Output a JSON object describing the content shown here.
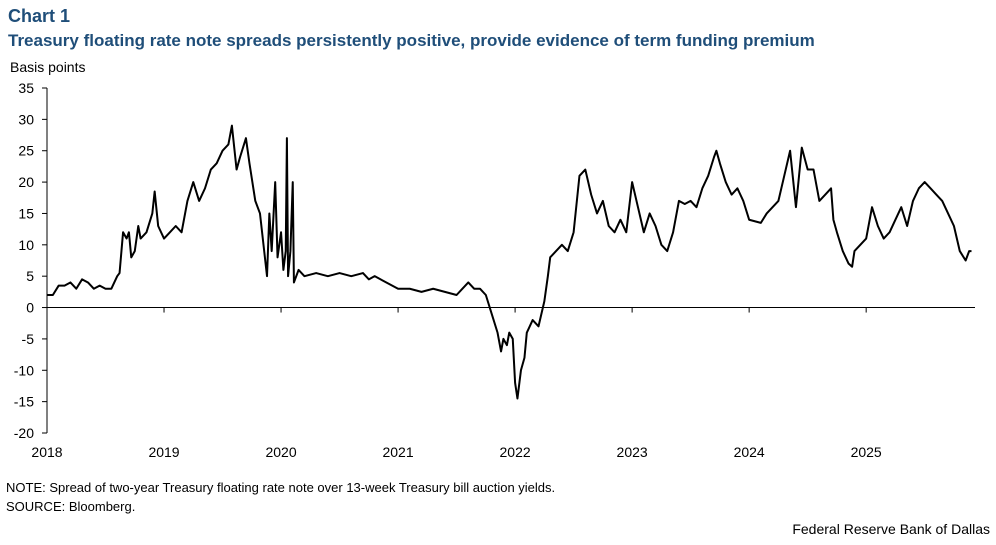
{
  "chart_data": {
    "type": "line",
    "label": "Chart 1",
    "title": "Treasury floating rate note spreads persistently positive, provide evidence of term funding premium",
    "ylabel": "Basis points",
    "note": "NOTE: Spread of two-year Treasury floating rate note over 13-week Treasury bill auction yields.",
    "source": "SOURCE: Bloomberg.",
    "credit": "Federal Reserve Bank of Dallas",
    "color": "#000000",
    "xlim": [
      2018,
      2025.93
    ],
    "xticks": [
      2018,
      2019,
      2020,
      2021,
      2022,
      2023,
      2024,
      2025
    ],
    "ylim": [
      -20,
      35
    ],
    "yticks": [
      -20,
      -15,
      -10,
      -5,
      0,
      5,
      10,
      15,
      20,
      25,
      30,
      35
    ],
    "x": [
      2018.0,
      2018.05,
      2018.1,
      2018.15,
      2018.2,
      2018.25,
      2018.3,
      2018.35,
      2018.4,
      2018.45,
      2018.5,
      2018.55,
      2018.6,
      2018.62,
      2018.65,
      2018.68,
      2018.7,
      2018.72,
      2018.75,
      2018.78,
      2018.8,
      2018.85,
      2018.9,
      2018.92,
      2018.95,
      2019.0,
      2019.05,
      2019.1,
      2019.15,
      2019.2,
      2019.25,
      2019.3,
      2019.35,
      2019.4,
      2019.45,
      2019.5,
      2019.55,
      2019.58,
      2019.62,
      2019.65,
      2019.7,
      2019.73,
      2019.78,
      2019.82,
      2019.85,
      2019.88,
      2019.9,
      2019.92,
      2019.95,
      2019.97,
      2020.0,
      2020.02,
      2020.04,
      2020.05,
      2020.06,
      2020.08,
      2020.1,
      2020.11,
      2020.15,
      2020.2,
      2020.3,
      2020.4,
      2020.5,
      2020.6,
      2020.7,
      2020.75,
      2020.8,
      2020.9,
      2021.0,
      2021.1,
      2021.2,
      2021.3,
      2021.4,
      2021.5,
      2021.55,
      2021.6,
      2021.65,
      2021.7,
      2021.75,
      2021.8,
      2021.85,
      2021.88,
      2021.9,
      2021.93,
      2021.95,
      2021.98,
      2022.0,
      2022.02,
      2022.05,
      2022.08,
      2022.1,
      2022.15,
      2022.2,
      2022.25,
      2022.28,
      2022.3,
      2022.35,
      2022.4,
      2022.45,
      2022.5,
      2022.55,
      2022.6,
      2022.65,
      2022.7,
      2022.75,
      2022.8,
      2022.85,
      2022.9,
      2022.95,
      2023.0,
      2023.05,
      2023.1,
      2023.15,
      2023.2,
      2023.25,
      2023.3,
      2023.35,
      2023.4,
      2023.45,
      2023.5,
      2023.55,
      2023.6,
      2023.65,
      2023.7,
      2023.72,
      2023.75,
      2023.8,
      2023.85,
      2023.9,
      2023.95,
      2024.0,
      2024.1,
      2024.15,
      2024.2,
      2024.25,
      2024.3,
      2024.35,
      2024.4,
      2024.45,
      2024.5,
      2024.55,
      2024.6,
      2024.65,
      2024.7,
      2024.72,
      2024.75,
      2024.8,
      2024.85,
      2024.88,
      2024.9,
      2025.0,
      2025.05,
      2025.1,
      2025.15,
      2025.2,
      2025.25,
      2025.3,
      2025.35,
      2025.4,
      2025.45,
      2025.5,
      2025.55,
      2025.6,
      2025.65,
      2025.7,
      2025.75,
      2025.8,
      2025.85,
      2025.88,
      2025.9
    ],
    "values": [
      2,
      2,
      3.5,
      3.5,
      4,
      3,
      4.5,
      4,
      3,
      3.5,
      3,
      3,
      5,
      5.5,
      12,
      11,
      12,
      8,
      9,
      13,
      11,
      12,
      15,
      18.5,
      13,
      11,
      12,
      13,
      12,
      17,
      20,
      17,
      19,
      22,
      23,
      25,
      26,
      29,
      22,
      24,
      27,
      23,
      17,
      15,
      10,
      5,
      15,
      9,
      20,
      8,
      12,
      6,
      9,
      27,
      5,
      9,
      20,
      4,
      6,
      5,
      5.5,
      5,
      5.5,
      5,
      5.5,
      4.5,
      5,
      4,
      3,
      3,
      2.5,
      3,
      2.5,
      2,
      3,
      4,
      3,
      3,
      2,
      -1,
      -4,
      -7,
      -5,
      -6,
      -4,
      -5,
      -12,
      -14.5,
      -10,
      -8,
      -4,
      -2,
      -3,
      1,
      5,
      8,
      9,
      10,
      9,
      12,
      21,
      22,
      18,
      15,
      17,
      13,
      12,
      14,
      12,
      20,
      16,
      12,
      15,
      13,
      10,
      9,
      12,
      17,
      16.5,
      17,
      16,
      19,
      21,
      24,
      25,
      23,
      20,
      18,
      19,
      17,
      14,
      13.5,
      15,
      16,
      17,
      21,
      25,
      16,
      25.5,
      22,
      22,
      17,
      18,
      19,
      14,
      12,
      9,
      7,
      6.5,
      9,
      11,
      16,
      13,
      11,
      12,
      14,
      16,
      13,
      17,
      19,
      20,
      19,
      18,
      17,
      15,
      13,
      9,
      7.5,
      9,
      9
    ]
  }
}
